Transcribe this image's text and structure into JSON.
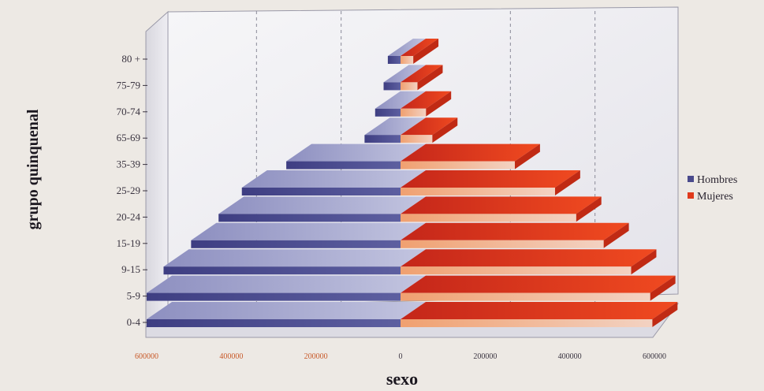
{
  "chart_data": {
    "type": "bar",
    "subtype": "population-pyramid-3d",
    "title": "",
    "xlabel": "sexo",
    "ylabel": "grupo quinquenal",
    "categories": [
      "0-4",
      "5-9",
      "9-15",
      "15-19",
      "20-24",
      "25-29",
      "35-39",
      "65-69",
      "70-74",
      "75-79",
      "80 +"
    ],
    "series": [
      {
        "name": "Hombres",
        "color": "#4a4a8c",
        "values": [
          600000,
          600000,
          560000,
          495000,
          430000,
          375000,
          270000,
          85000,
          60000,
          40000,
          30000
        ]
      },
      {
        "name": "Mujeres",
        "color": "#e03a1c",
        "values": [
          595000,
          590000,
          545000,
          480000,
          415000,
          365000,
          270000,
          75000,
          60000,
          40000,
          30000
        ]
      }
    ],
    "xticks_left": [
      "600000",
      "400000",
      "200000"
    ],
    "xticks_right": [
      "0",
      "200000",
      "400000",
      "600000"
    ],
    "xlim": [
      -600000,
      600000
    ],
    "grid": true,
    "legend_position": "right"
  },
  "colors": {
    "left_tick": "#c85a2a",
    "right_tick": "#3a3440"
  }
}
